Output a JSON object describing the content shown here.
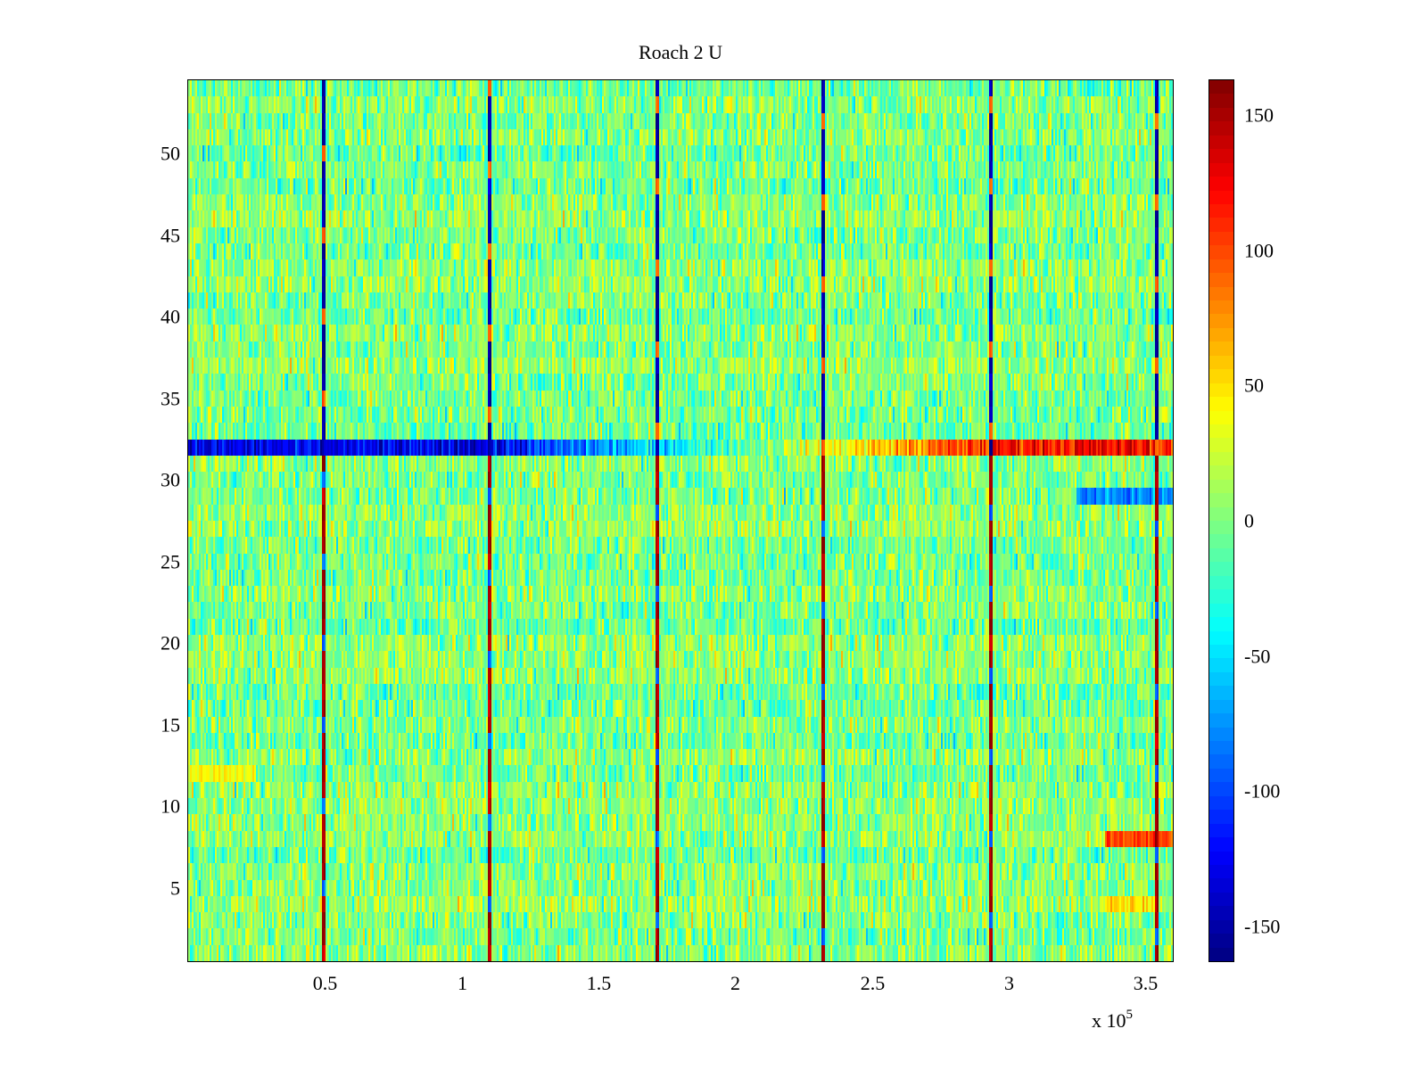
{
  "chart_data": {
    "type": "heatmap",
    "title": "Roach 2 U",
    "xlabel": "",
    "ylabel": "",
    "x_multiplier_label": "x 10",
    "x_multiplier_exponent": "5",
    "xlim": [
      0,
      3.6
    ],
    "ylim": [
      0.5,
      54.5
    ],
    "x_ticks": [
      0.5,
      1,
      1.5,
      2,
      2.5,
      3,
      3.5
    ],
    "x_tick_labels": [
      "0.5",
      "1",
      "1.5",
      "2",
      "2.5",
      "3",
      "3.5"
    ],
    "y_ticks": [
      5,
      10,
      15,
      20,
      25,
      30,
      35,
      40,
      45,
      50
    ],
    "y_tick_labels": [
      "5",
      "10",
      "15",
      "20",
      "25",
      "30",
      "35",
      "40",
      "45",
      "50"
    ],
    "n_rows": 54,
    "colorbar": {
      "colormap": "jet",
      "clim": [
        -163,
        163
      ],
      "ticks": [
        150,
        100,
        50,
        0,
        -50,
        -100,
        -150
      ],
      "tick_labels": [
        "150",
        "100",
        "50",
        "0",
        "-50",
        "-100",
        "-150"
      ]
    },
    "vertical_stripes_x": [
      0.49,
      1.1,
      1.71,
      2.32,
      2.93,
      3.54
    ],
    "highlighted_rows": [
      {
        "row": 32,
        "description": "drifts from about -130 (x < 1.3) through 0 (x ~ 1.6) to about +120 (x > 3)"
      },
      {
        "row": 29,
        "x_range": [
          3.25,
          3.6
        ],
        "approx_value": -80
      },
      {
        "row": 12,
        "x_range": [
          0,
          0.25
        ],
        "approx_value": 40
      },
      {
        "row": 8,
        "x_range": [
          3.35,
          3.6
        ],
        "approx_value": 100
      },
      {
        "row": 4,
        "x_range": [
          3.35,
          3.55
        ],
        "approx_value": 50
      }
    ],
    "background_value_range": [
      -40,
      40
    ]
  }
}
